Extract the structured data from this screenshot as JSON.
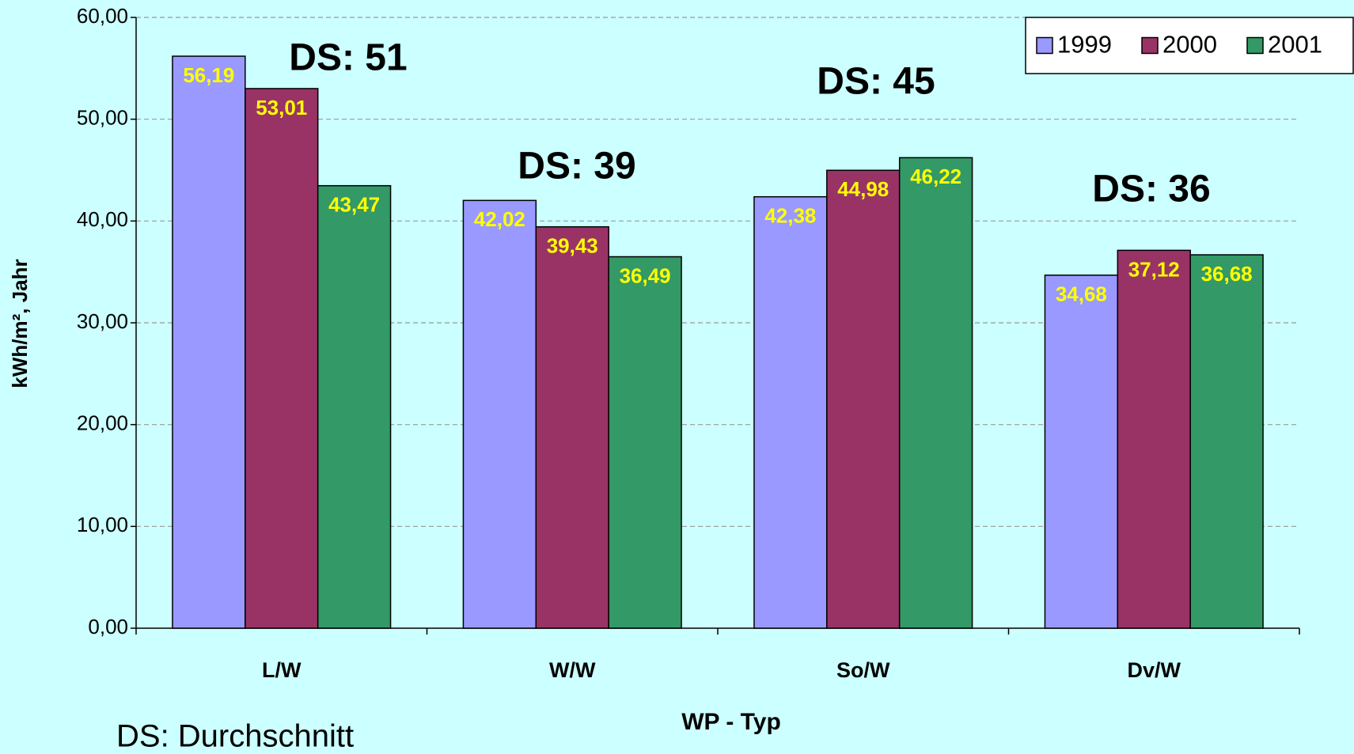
{
  "chart_data": {
    "type": "bar",
    "ylabel": "kWh/m², Jahr",
    "xlabel": "WP - Typ",
    "categories": [
      "L/W",
      "W/W",
      "So/W",
      "Dv/W"
    ],
    "series": [
      {
        "name": "1999",
        "color": "#9999ff",
        "values": [
          56.19,
          42.02,
          42.38,
          34.68
        ],
        "value_labels": [
          "56,19",
          "42,02",
          "42,38",
          "34,68"
        ]
      },
      {
        "name": "2000",
        "color": "#993366",
        "values": [
          53.01,
          39.43,
          44.98,
          37.12
        ],
        "value_labels": [
          "53,01",
          "39,43",
          "44,98",
          "37,12"
        ]
      },
      {
        "name": "2001",
        "color": "#339966",
        "values": [
          43.47,
          36.49,
          46.22,
          36.68
        ],
        "value_labels": [
          "43,47",
          "36,49",
          "46,22",
          "36,68"
        ]
      }
    ],
    "ylim": [
      0,
      60
    ],
    "yticks": [
      {
        "value": 0,
        "label": "0,00"
      },
      {
        "value": 10,
        "label": "10,00"
      },
      {
        "value": 20,
        "label": "20,00"
      },
      {
        "value": 30,
        "label": "30,00"
      },
      {
        "value": 40,
        "label": "40,00"
      },
      {
        "value": 50,
        "label": "50,00"
      },
      {
        "value": 60,
        "label": "60,00"
      }
    ],
    "grid": true,
    "legend": "upper right",
    "annotations": [
      "DS: 51",
      "DS: 39",
      "DS: 45",
      "DS: 36"
    ],
    "footnote": "DS: Durchschnitt"
  }
}
